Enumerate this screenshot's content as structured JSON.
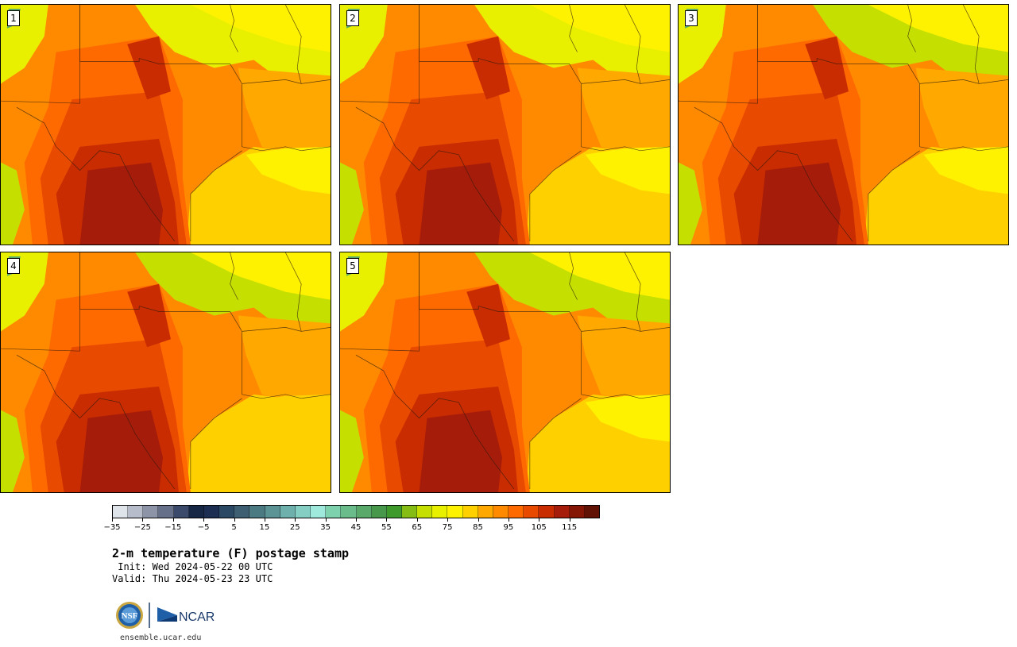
{
  "panels": [
    {
      "id": "p1",
      "label": "1"
    },
    {
      "id": "p2",
      "label": "2"
    },
    {
      "id": "p3",
      "label": "3"
    },
    {
      "id": "p4",
      "label": "4"
    },
    {
      "id": "p5",
      "label": "5"
    }
  ],
  "colorbar": {
    "colors": [
      "#dfe4ea",
      "#b6bcc9",
      "#8d94a8",
      "#667088",
      "#3b4a6b",
      "#162645",
      "#1c2f52",
      "#2b4864",
      "#3e5f72",
      "#4c7a82",
      "#5c9496",
      "#6eb0ac",
      "#84cec3",
      "#9ee8dc",
      "#7dd1ad",
      "#6abd8b",
      "#58a96a",
      "#47984a",
      "#3e9a2a",
      "#86bd15",
      "#c5df00",
      "#e8f000",
      "#fff200",
      "#ffd000",
      "#ffa800",
      "#ff8a00",
      "#ff6a00",
      "#e84a00",
      "#c82c00",
      "#a61c0a",
      "#851505",
      "#611204"
    ],
    "tick_labels": [
      "−35",
      "−25",
      "−15",
      "−5",
      "5",
      "15",
      "25",
      "35",
      "45",
      "55",
      "65",
      "75",
      "85",
      "95",
      "105",
      "115"
    ]
  },
  "title": "2-m temperature (F) postage stamp",
  "init": " Init: Wed 2024-05-22 00 UTC",
  "valid": "Valid: Thu 2024-05-23 23 UTC",
  "logo": {
    "nsf": "NSF",
    "ncar": "NCAR"
  },
  "url": "ensemble.ucar.edu"
}
